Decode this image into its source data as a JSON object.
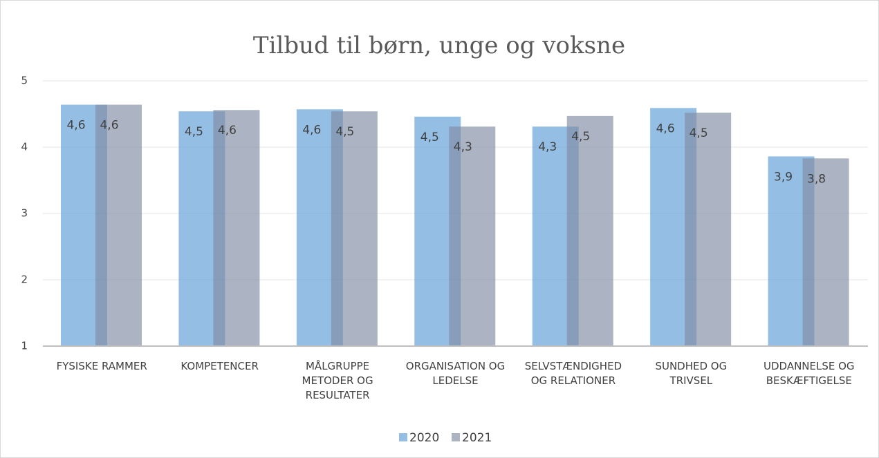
{
  "chart_data": {
    "type": "bar",
    "title": "Tilbud til børn, unge og voksne",
    "categories": [
      "FYSISKE RAMMER",
      "KOMPETENCER",
      "MÅLGRUPPE METODER OG RESULTATER",
      "ORGANISATION OG LEDELSE",
      "SELVSTÆNDIGHED OG RELATIONER",
      "SUNDHED OG TRIVSEL",
      "UDDANNELSE OG BESKÆFTIGELSE"
    ],
    "series": [
      {
        "name": "2020",
        "color": "#5b9bd5",
        "values": [
          4.64,
          4.54,
          4.57,
          4.46,
          4.31,
          4.59,
          3.86
        ],
        "value_labels": [
          "4,6",
          "4,5",
          "4,6",
          "4,5",
          "4,3",
          "4,6",
          "3,9"
        ]
      },
      {
        "name": "2021",
        "color": "#7f8ca3",
        "values": [
          4.64,
          4.56,
          4.54,
          4.31,
          4.47,
          4.52,
          3.83
        ],
        "value_labels": [
          "4,6",
          "4,6",
          "4,5",
          "4,3",
          "4,5",
          "4,5",
          "3,8"
        ]
      }
    ],
    "ylim": [
      1,
      5
    ],
    "yticks": [
      1,
      2,
      3,
      4,
      5
    ],
    "grid": true,
    "legend": "bottom"
  }
}
